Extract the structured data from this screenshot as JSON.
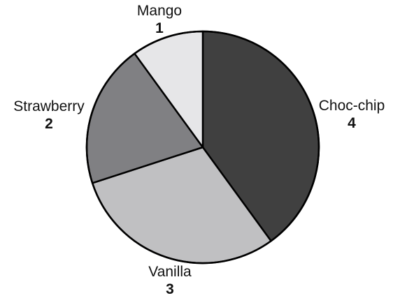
{
  "chart_data": {
    "type": "pie",
    "title": "",
    "categories": [
      "Choc-chip",
      "Vanilla",
      "Strawberry",
      "Mango"
    ],
    "values": [
      4,
      3,
      2,
      1
    ],
    "colors": [
      "#404040",
      "#c0c0c2",
      "#808083",
      "#e6e6e8"
    ],
    "start": "12 o'clock",
    "direction": "clockwise",
    "legend": "none",
    "labels_outside": true
  }
}
